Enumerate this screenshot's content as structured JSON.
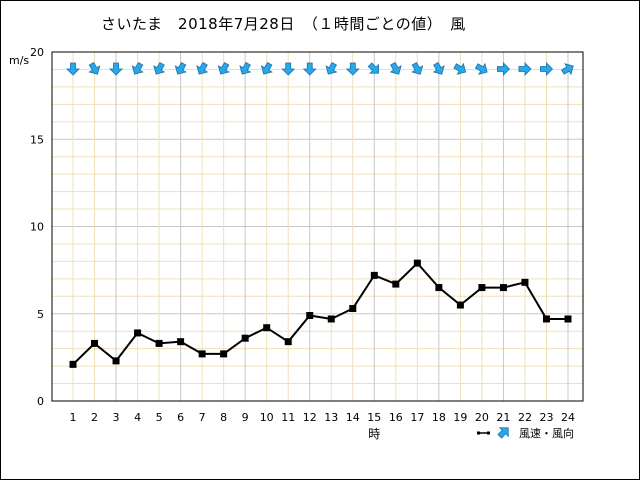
{
  "title": "さいたま　2018年7月28日　（１時間ごとの値）　風",
  "chart_data": {
    "type": "line",
    "ylabel": "m/s",
    "xlabel": "時",
    "ylim": [
      0,
      20
    ],
    "yticks": [
      0,
      5,
      10,
      15,
      20
    ],
    "categories": [
      "1",
      "2",
      "3",
      "4",
      "5",
      "6",
      "7",
      "8",
      "9",
      "10",
      "11",
      "12",
      "13",
      "14",
      "15",
      "16",
      "17",
      "18",
      "19",
      "20",
      "21",
      "22",
      "23",
      "24"
    ],
    "series": [
      {
        "name": "風速・風向",
        "values": [
          2.1,
          3.3,
          2.3,
          3.9,
          3.3,
          3.4,
          2.7,
          2.7,
          3.6,
          4.2,
          3.4,
          4.9,
          4.7,
          5.3,
          7.2,
          6.7,
          7.9,
          6.5,
          5.5,
          6.5,
          6.5,
          6.8,
          4.7,
          4.7
        ]
      }
    ],
    "wind_direction_deg": [
      0,
      330,
      0,
      30,
      30,
      30,
      30,
      30,
      30,
      30,
      0,
      0,
      30,
      0,
      315,
      330,
      330,
      330,
      300,
      300,
      270,
      270,
      270,
      240
    ],
    "colors": {
      "line": "#000000",
      "arrow_fill": "#29a8e8",
      "arrow_stroke": "#1a6fb0",
      "grid_major": "#c8c8c8",
      "grid_minor": "#efe0b8"
    },
    "grid": true,
    "legend": "bottom-right"
  }
}
